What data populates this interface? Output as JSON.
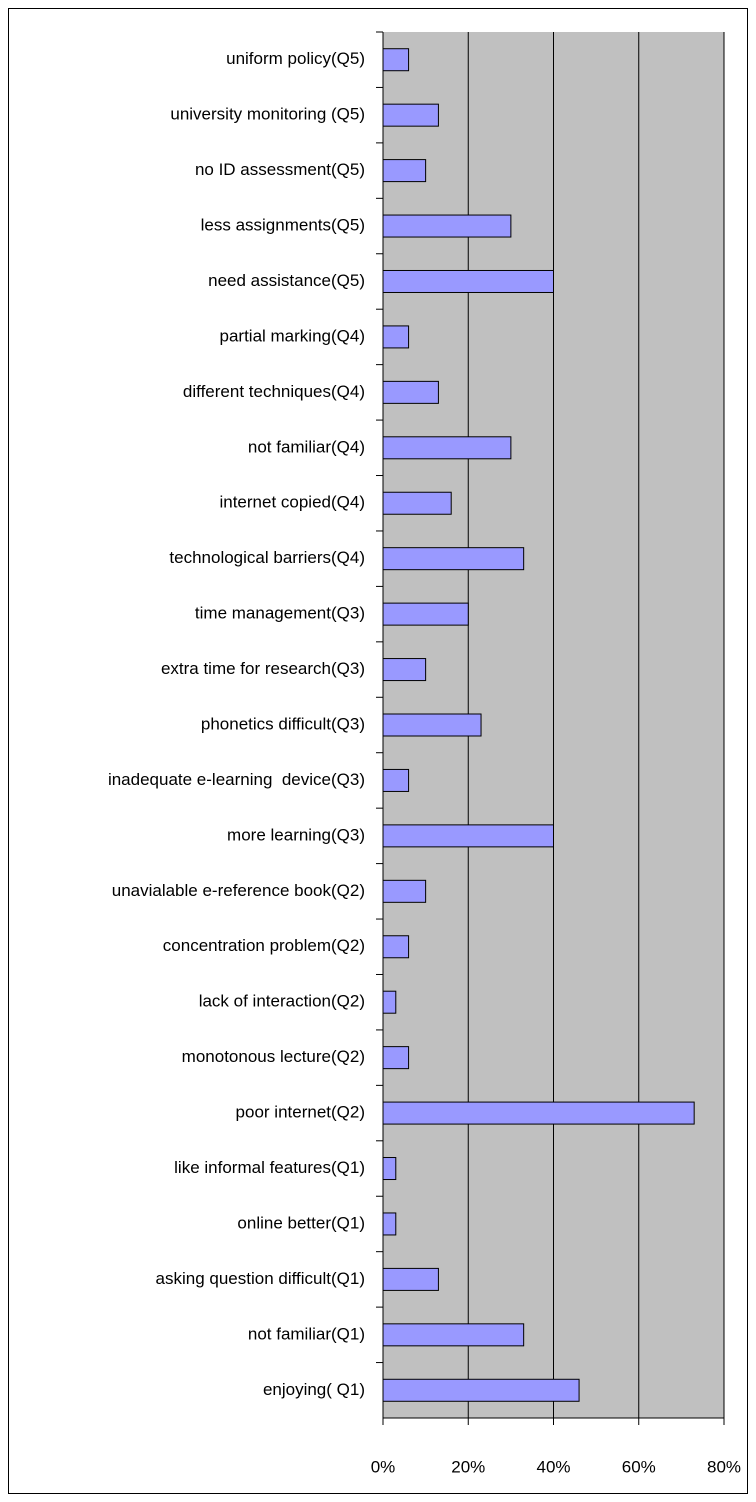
{
  "chart_data": {
    "type": "hbar",
    "categories": [
      "uniform policy(Q5)",
      "university monitoring (Q5)",
      "no ID assessment(Q5)",
      "less assignments(Q5)",
      "need assistance(Q5)",
      "partial marking(Q4)",
      "different techniques(Q4)",
      "not familiar(Q4)",
      "internet copied(Q4)",
      "technological barriers(Q4)",
      "time management(Q3)",
      "extra time for research(Q3)",
      "phonetics difficult(Q3)",
      "inadequate e-learning  device(Q3)",
      "more learning(Q3)",
      "unavialable e-reference book(Q2)",
      "concentration problem(Q2)",
      "lack of interaction(Q2)",
      "monotonous lecture(Q2)",
      "poor internet(Q2)",
      "like informal features(Q1)",
      "online better(Q1)",
      "asking question difficult(Q1)",
      "not familiar(Q1)",
      "enjoying( Q1)"
    ],
    "values": [
      6,
      13,
      10,
      30,
      40,
      6,
      13,
      30,
      16,
      33,
      20,
      10,
      23,
      6,
      40,
      10,
      6,
      3,
      6,
      73,
      3,
      3,
      13,
      33,
      46
    ],
    "color": "#9999ff",
    "xlim": [
      0,
      80
    ],
    "xticks": [
      {
        "value": 0,
        "label": "0%"
      },
      {
        "value": 20,
        "label": "20%"
      },
      {
        "value": 40,
        "label": "40%"
      },
      {
        "value": 60,
        "label": "60%"
      },
      {
        "value": 80,
        "label": "80%"
      }
    ],
    "grid": true
  }
}
